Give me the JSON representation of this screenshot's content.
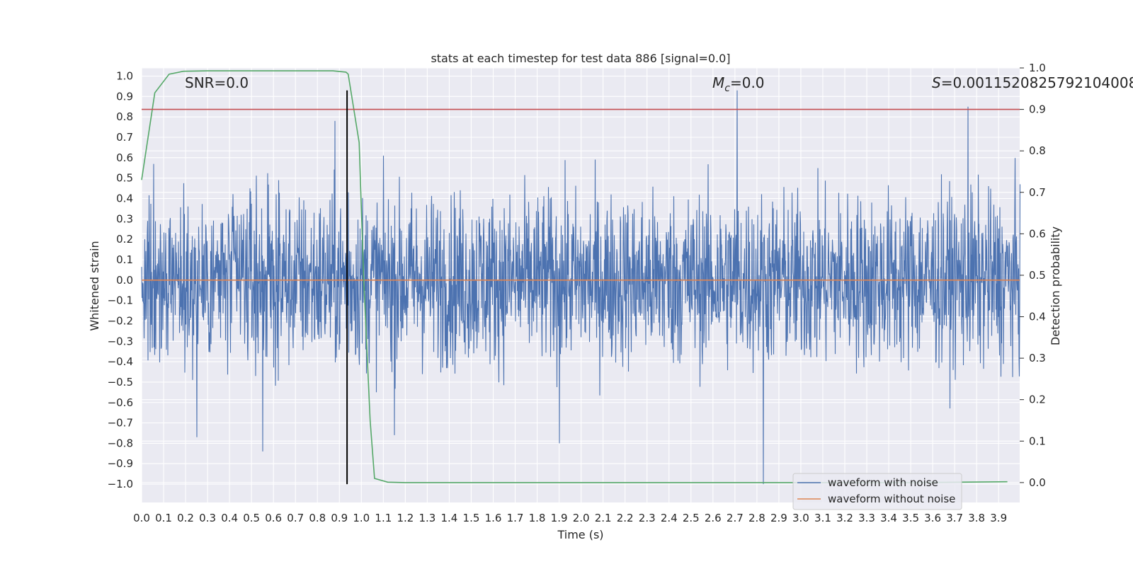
{
  "chart_data": {
    "type": "line",
    "title": "stats at each timestep for test data 886 [signal=0.0]",
    "xlabel": "Time (s)",
    "ylabel": "Whitened strain",
    "y2label": "Detection probability",
    "xlim": [
      0.0,
      3.996
    ],
    "ylim": [
      -1.09,
      1.04
    ],
    "y2lim": [
      -0.048,
      1.0
    ],
    "x_ticks": [
      "0.0",
      "0.1",
      "0.2",
      "0.3",
      "0.4",
      "0.5",
      "0.6",
      "0.7",
      "0.8",
      "0.9",
      "1.0",
      "1.1",
      "1.2",
      "1.3",
      "1.4",
      "1.5",
      "1.6",
      "1.7",
      "1.8",
      "1.9",
      "2.0",
      "2.1",
      "2.2",
      "2.3",
      "2.4",
      "2.5",
      "2.6",
      "2.7",
      "2.8",
      "2.9",
      "3.0",
      "3.1",
      "3.2",
      "3.3",
      "3.4",
      "3.5",
      "3.6",
      "3.7",
      "3.8",
      "3.9"
    ],
    "y_ticks": [
      "1.0",
      "0.9",
      "0.8",
      "0.7",
      "0.6",
      "0.5",
      "0.4",
      "0.3",
      "0.2",
      "0.1",
      "0.0",
      "−0.1",
      "−0.2",
      "−0.3",
      "−0.4",
      "−0.5",
      "−0.6",
      "−0.7",
      "−0.8",
      "−0.9",
      "−1.0"
    ],
    "y2_ticks": [
      "1.0",
      "0.9",
      "0.8",
      "0.7",
      "0.6",
      "0.5",
      "0.4",
      "0.3",
      "0.2",
      "0.1",
      "0.0"
    ],
    "grid": true,
    "legend_position": "lower right",
    "annotations": {
      "snr": "SNR=0.0",
      "mc_symbol": "M",
      "mc_sub": "c",
      "mc_value": "=0.0",
      "s_symbol": "S",
      "s_value": "=0.0011520825792104008"
    },
    "series": [
      {
        "name": "waveform with noise",
        "axis": "left",
        "color": "#4c72b0",
        "peaks": [
          {
            "x": 0.25,
            "y": -0.77
          },
          {
            "x": 0.55,
            "y": -0.84
          },
          {
            "x": 0.88,
            "y": 0.78
          },
          {
            "x": 0.94,
            "y": 0.43
          },
          {
            "x": 1.15,
            "y": -0.76
          },
          {
            "x": 1.9,
            "y": -0.8
          },
          {
            "x": 2.71,
            "y": 0.93
          },
          {
            "x": 2.83,
            "y": -1.0
          },
          {
            "x": 3.76,
            "y": 0.85
          }
        ]
      },
      {
        "name": "waveform without noise",
        "axis": "left",
        "color": "#dd8452",
        "x": [
          0.0,
          3.996
        ],
        "y": [
          0.0,
          0.0
        ]
      },
      {
        "axis": "right",
        "color": "#55a868",
        "x": [
          0.0,
          0.06,
          0.125,
          0.19,
          0.3,
          0.5,
          0.7,
          0.87,
          0.93,
          0.94,
          0.99,
          1.01,
          1.04,
          1.06,
          1.12,
          1.2,
          1.5,
          2.0,
          2.5,
          3.0,
          3.5,
          3.94
        ],
        "y": [
          0.73,
          0.94,
          0.985,
          0.992,
          0.993,
          0.993,
          0.993,
          0.993,
          0.99,
          0.985,
          0.82,
          0.5,
          0.15,
          0.01,
          0.001,
          0.0,
          0.0,
          0.0,
          0.0,
          0.0,
          0.0,
          0.002
        ]
      },
      {
        "axis": "right",
        "color": "#c44e52",
        "x": [
          0.0,
          3.996
        ],
        "y": [
          0.9,
          0.9
        ]
      },
      {
        "axis": "left",
        "color": "#000000",
        "x": [
          0.935,
          0.935
        ],
        "y": [
          -1.0,
          0.93
        ]
      }
    ]
  }
}
